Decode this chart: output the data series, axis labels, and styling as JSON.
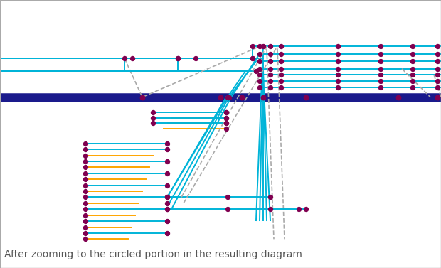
{
  "background_color": "#ffffff",
  "border_color": "#aaaaaa",
  "caption": "After zooming to the circled portion in the resulting diagram",
  "caption_color": "#555555",
  "caption_fontsize": 10,
  "cyan": "#00b4d8",
  "orange": "#ffa500",
  "purple": "#800050",
  "gray": "#aaaaaa",
  "navy": "#1a1a8c",
  "lw": 1.4,
  "ns": 28,
  "main_lw": 9
}
